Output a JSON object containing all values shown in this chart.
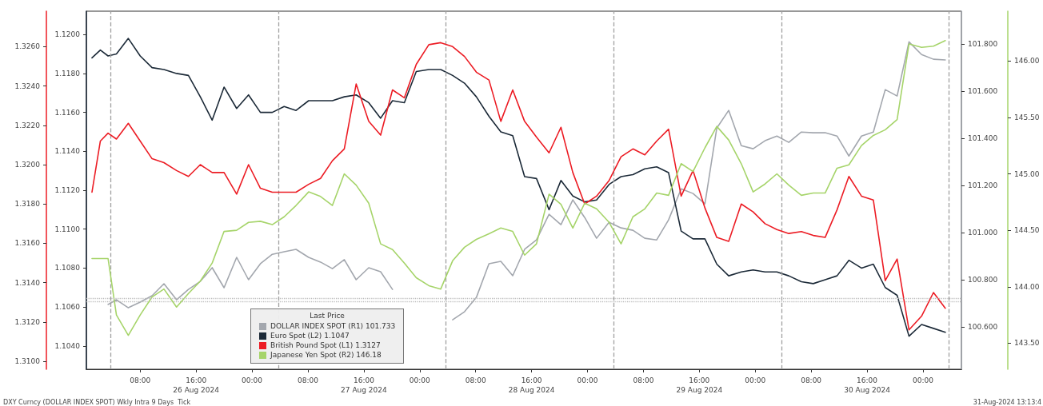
{
  "chart_data": [
    {
      "type": "line",
      "legend_title": "Last Price",
      "annotations": [
        "DXY Curncy (DOLLAR INDEX SPOT) Wkly Intra 9 Days  Tick",
        "31-Aug-2024 13:13:4"
      ],
      "x": [
        "2024-08-26T01:06",
        "2024-08-26T02:18",
        "2024-08-26T03:24",
        "2024-08-26T04:36",
        "2024-08-26T06:18",
        "2024-08-26T08:00",
        "2024-08-26T09:42",
        "2024-08-26T11:24",
        "2024-08-26T13:12",
        "2024-08-26T14:54",
        "2024-08-26T16:36",
        "2024-08-26T18:18",
        "2024-08-26T20:00",
        "2024-08-26T21:48",
        "2024-08-26T23:30",
        "2024-08-27T01:12",
        "2024-08-27T02:54",
        "2024-08-27T04:36",
        "2024-08-27T06:18",
        "2024-08-27T08:06",
        "2024-08-27T09:48",
        "2024-08-27T11:30",
        "2024-08-27T13:12",
        "2024-08-27T14:54",
        "2024-08-27T16:42",
        "2024-08-27T18:24",
        "2024-08-27T20:06",
        "2024-08-27T21:48",
        "2024-08-27T23:30",
        "2024-08-28T01:18",
        "2024-08-28T03:00",
        "2024-08-28T04:42",
        "2024-08-28T06:24",
        "2024-08-28T08:06",
        "2024-08-28T09:54",
        "2024-08-28T11:36",
        "2024-08-28T13:18",
        "2024-08-28T15:00",
        "2024-08-28T16:42",
        "2024-08-28T18:30",
        "2024-08-28T20:12",
        "2024-08-28T21:54",
        "2024-08-28T23:36",
        "2024-08-29T01:18",
        "2024-08-29T03:06",
        "2024-08-29T04:48",
        "2024-08-29T06:30",
        "2024-08-29T08:12",
        "2024-08-29T09:54",
        "2024-08-29T11:36",
        "2024-08-29T13:24",
        "2024-08-29T15:06",
        "2024-08-29T16:48",
        "2024-08-29T18:30",
        "2024-08-29T20:12",
        "2024-08-29T22:00",
        "2024-08-29T23:42",
        "2024-08-30T01:24",
        "2024-08-30T03:06",
        "2024-08-30T04:48",
        "2024-08-30T06:36",
        "2024-08-30T08:18",
        "2024-08-30T10:00",
        "2024-08-30T11:42",
        "2024-08-30T13:24",
        "2024-08-30T15:12",
        "2024-08-30T16:54",
        "2024-08-30T18:36",
        "2024-08-30T20:18",
        "2024-08-30T22:00",
        "2024-08-30T23:48",
        "2024-08-31T01:30",
        "2024-08-31T03:12"
      ],
      "series": [
        {
          "name": "DOLLAR INDEX SPOT (R1) 101.733",
          "color": "#a3a7ae",
          "axis": "y2",
          "values": [
            null,
            null,
            100.695,
            100.715,
            100.681,
            100.705,
            100.732,
            100.783,
            100.715,
            100.759,
            100.793,
            100.851,
            100.766,
            100.895,
            100.8,
            100.868,
            100.908,
            100.919,
            100.929,
            100.895,
            100.875,
            100.847,
            100.885,
            100.8,
            100.851,
            100.834,
            100.759,
            null,
            null,
            null,
            null,
            100.63,
            100.664,
            100.725,
            100.868,
            100.878,
            100.817,
            100.929,
            100.969,
            101.078,
            101.034,
            101.139,
            101.064,
            100.976,
            101.044,
            101.02,
            101.01,
            100.976,
            100.969,
            101.054,
            101.186,
            101.166,
            101.122,
            101.444,
            101.519,
            101.369,
            101.356,
            101.39,
            101.41,
            101.383,
            101.427,
            101.424,
            101.424,
            101.41,
            101.325,
            101.41,
            101.427,
            101.607,
            101.58,
            101.81,
            101.756,
            101.736,
            101.733
          ]
        },
        {
          "name": "Euro Spot (L2) 1.1047",
          "color": "#1c2a38",
          "values": [
            1.1188,
            1.1192,
            1.1189,
            1.119,
            1.1198,
            1.1189,
            1.1183,
            1.1182,
            1.118,
            1.1179,
            1.1168,
            1.1156,
            1.1173,
            1.1162,
            1.1169,
            1.116,
            1.116,
            1.1163,
            1.1161,
            1.1166,
            1.1166,
            1.1166,
            1.1168,
            1.1169,
            1.1165,
            1.1157,
            1.1166,
            1.1165,
            1.1181,
            1.1182,
            1.1182,
            1.1179,
            1.1175,
            1.1168,
            1.1158,
            1.115,
            1.1148,
            1.1127,
            1.1126,
            1.111,
            1.1125,
            1.1117,
            1.1114,
            1.1115,
            1.1123,
            1.1127,
            1.1128,
            1.1131,
            1.1132,
            1.1129,
            1.1099,
            1.1095,
            1.1095,
            1.1082,
            1.1076,
            1.1078,
            1.1079,
            1.1078,
            1.1078,
            1.1076,
            1.1073,
            1.1072,
            1.1074,
            1.1076,
            1.1084,
            1.108,
            1.1082,
            1.107,
            1.1066,
            1.1045,
            1.1051,
            1.1049,
            1.1047
          ]
        }
      ],
      "xlim": [
        "2024-08-26T00:18",
        "2024-08-31T05:30"
      ],
      "xticks": [
        {
          "value": "2024-08-26T08:00",
          "label": "08:00"
        },
        {
          "value": "2024-08-26T16:00",
          "label": "16:00\n26 Aug 2024"
        },
        {
          "value": "2024-08-27T00:00",
          "label": "00:00"
        },
        {
          "value": "2024-08-27T08:00",
          "label": "08:00"
        },
        {
          "value": "2024-08-27T16:00",
          "label": "16:00\n27 Aug 2024"
        },
        {
          "value": "2024-08-28T00:00",
          "label": "00:00"
        },
        {
          "value": "2024-08-28T08:00",
          "label": "08:00"
        },
        {
          "value": "2024-08-28T16:00",
          "label": "16:00\n28 Aug 2024"
        },
        {
          "value": "2024-08-29T00:00",
          "label": "00:00"
        },
        {
          "value": "2024-08-29T08:00",
          "label": "08:00"
        },
        {
          "value": "2024-08-29T16:00",
          "label": "16:00\n29 Aug 2024"
        },
        {
          "value": "2024-08-30T00:00",
          "label": "00:00"
        },
        {
          "value": "2024-08-30T08:00",
          "label": "08:00"
        },
        {
          "value": "2024-08-30T16:00",
          "label": "16:00\n30 Aug 2024"
        },
        {
          "value": "2024-08-31T00:00",
          "label": "00:00"
        }
      ],
      "ylim": [
        1.1028,
        1.1212
      ],
      "yticks": [
        {
          "value": 1.104,
          "label": "1.1040"
        },
        {
          "value": 1.106,
          "label": "1.1060"
        },
        {
          "value": 1.108,
          "label": "1.1080"
        },
        {
          "value": 1.11,
          "label": "1.1100"
        },
        {
          "value": 1.112,
          "label": "1.1120"
        },
        {
          "value": 1.114,
          "label": "1.1140"
        },
        {
          "value": 1.116,
          "label": "1.1160"
        },
        {
          "value": 1.118,
          "label": "1.1180"
        },
        {
          "value": 1.12,
          "label": "1.1200"
        }
      ],
      "y2lim": [
        100.42,
        101.94
      ],
      "y2ticks": [
        {
          "value": 100.6,
          "label": "100.600"
        },
        {
          "value": 100.8,
          "label": "100.800"
        },
        {
          "value": 101,
          "label": "101.000"
        },
        {
          "value": 101.2,
          "label": "101.200"
        },
        {
          "value": 101.4,
          "label": "101.400"
        },
        {
          "value": 101.6,
          "label": "101.600"
        },
        {
          "value": 101.8,
          "label": "101.800"
        }
      ],
      "ref_lines": [
        {
          "axis": "x",
          "value": "2024-08-26T03:45",
          "color": "#a0a0a0",
          "line_style": "dashed"
        },
        {
          "axis": "x",
          "value": "2024-08-27T03:45",
          "color": "#a0a0a0",
          "line_style": "dashed"
        },
        {
          "axis": "x",
          "value": "2024-08-28T03:45",
          "color": "#a0a0a0",
          "line_style": "dashed"
        },
        {
          "axis": "x",
          "value": "2024-08-29T03:45",
          "color": "#a0a0a0",
          "line_style": "dashed"
        },
        {
          "axis": "x",
          "value": "2024-08-30T03:45",
          "color": "#a0a0a0",
          "line_style": "dashed"
        },
        {
          "axis": "x",
          "value": "2024-08-31T03:45",
          "color": "#a0a0a0",
          "line_style": "dashed"
        },
        {
          "axis": "y",
          "value": 1.1063,
          "color": "#bdbdbd",
          "line_style": "dotted"
        }
      ],
      "grid": false,
      "legend": "bottom left",
      "marker": "none",
      "line_style": "solid"
    },
    {
      "type": "line",
      "x": [
        "2024-08-26T01:06",
        "2024-08-26T02:18",
        "2024-08-26T03:24",
        "2024-08-26T04:36",
        "2024-08-26T06:18",
        "2024-08-26T08:00",
        "2024-08-26T09:42",
        "2024-08-26T11:24",
        "2024-08-26T13:12",
        "2024-08-26T14:54",
        "2024-08-26T16:36",
        "2024-08-26T18:18",
        "2024-08-26T20:00",
        "2024-08-26T21:48",
        "2024-08-26T23:30",
        "2024-08-27T01:12",
        "2024-08-27T02:54",
        "2024-08-27T04:36",
        "2024-08-27T06:18",
        "2024-08-27T08:06",
        "2024-08-27T09:48",
        "2024-08-27T11:30",
        "2024-08-27T13:12",
        "2024-08-27T14:54",
        "2024-08-27T16:42",
        "2024-08-27T18:24",
        "2024-08-27T20:06",
        "2024-08-27T21:48",
        "2024-08-27T23:30",
        "2024-08-28T01:18",
        "2024-08-28T03:00",
        "2024-08-28T04:42",
        "2024-08-28T06:24",
        "2024-08-28T08:06",
        "2024-08-28T09:54",
        "2024-08-28T11:36",
        "2024-08-28T13:18",
        "2024-08-28T15:00",
        "2024-08-28T16:42",
        "2024-08-28T18:30",
        "2024-08-28T20:12",
        "2024-08-28T21:54",
        "2024-08-28T23:36",
        "2024-08-29T01:18",
        "2024-08-29T03:06",
        "2024-08-29T04:48",
        "2024-08-29T06:30",
        "2024-08-29T08:12",
        "2024-08-29T09:54",
        "2024-08-29T11:36",
        "2024-08-29T13:24",
        "2024-08-29T15:06",
        "2024-08-29T16:48",
        "2024-08-29T18:30",
        "2024-08-29T20:12",
        "2024-08-29T22:00",
        "2024-08-29T23:42",
        "2024-08-30T01:24",
        "2024-08-30T03:06",
        "2024-08-30T04:48",
        "2024-08-30T06:36",
        "2024-08-30T08:18",
        "2024-08-30T10:00",
        "2024-08-30T11:42",
        "2024-08-30T13:24",
        "2024-08-30T15:12",
        "2024-08-30T16:54",
        "2024-08-30T18:36",
        "2024-08-30T20:18",
        "2024-08-30T22:00",
        "2024-08-30T23:48",
        "2024-08-31T01:30",
        "2024-08-31T03:12"
      ],
      "series": [
        {
          "name": "British Pound Spot (L1) 1.3127",
          "color": "#ec1c24",
          "values": [
            1.3186,
            1.3212,
            1.3216,
            1.3213,
            1.3221,
            1.3212,
            1.3203,
            1.3201,
            1.3197,
            1.3194,
            1.32,
            1.3196,
            1.3196,
            1.3185,
            1.32,
            1.3188,
            1.3186,
            1.3186,
            1.3186,
            1.319,
            1.3193,
            1.3202,
            1.3208,
            1.3241,
            1.3222,
            1.3215,
            1.3238,
            1.3234,
            1.3251,
            1.3261,
            1.3262,
            1.326,
            1.3255,
            1.3247,
            1.3243,
            1.3222,
            1.3238,
            1.3222,
            1.3214,
            1.3206,
            1.3219,
            1.3196,
            1.318,
            1.3184,
            1.3192,
            1.3204,
            1.3208,
            1.3205,
            1.3212,
            1.3218,
            1.3184,
            1.3197,
            1.3178,
            1.3163,
            1.3161,
            1.318,
            1.3176,
            1.317,
            1.3167,
            1.3165,
            1.3166,
            1.3164,
            1.3163,
            1.3177,
            1.3194,
            1.3184,
            1.3182,
            1.3141,
            1.3152,
            1.3116,
            1.3123,
            1.3135,
            1.3127
          ]
        },
        {
          "name": "Japanese Yen Spot (R2) 146.18",
          "color": "#a6d46a",
          "axis": "y2",
          "values": [
            144.25,
            144.25,
            144.25,
            143.75,
            143.57,
            143.75,
            143.91,
            143.98,
            143.82,
            143.94,
            144.05,
            144.21,
            144.49,
            144.5,
            144.57,
            144.58,
            144.55,
            144.62,
            144.72,
            144.84,
            144.8,
            144.72,
            145.0,
            144.9,
            144.74,
            144.38,
            144.33,
            144.21,
            144.08,
            144.01,
            143.98,
            144.23,
            144.35,
            144.42,
            144.47,
            144.52,
            144.49,
            144.28,
            144.38,
            144.82,
            144.73,
            144.52,
            144.74,
            144.69,
            144.57,
            144.38,
            144.62,
            144.69,
            144.83,
            144.81,
            145.09,
            145.02,
            145.23,
            145.42,
            145.3,
            145.09,
            144.84,
            144.91,
            145.0,
            144.9,
            144.81,
            144.83,
            144.83,
            145.05,
            145.08,
            145.25,
            145.34,
            145.39,
            145.48,
            146.15,
            146.12,
            146.13,
            146.18
          ]
        }
      ],
      "xlim": [
        "2024-08-26T00:18",
        "2024-08-31T05:30"
      ],
      "ylim": [
        1.3096,
        1.3278
      ],
      "yticks": [
        {
          "value": 1.31,
          "label": "1.3100"
        },
        {
          "value": 1.312,
          "label": "1.3120"
        },
        {
          "value": 1.314,
          "label": "1.3140"
        },
        {
          "value": 1.316,
          "label": "1.3160"
        },
        {
          "value": 1.318,
          "label": "1.3180"
        },
        {
          "value": 1.32,
          "label": "1.3200"
        },
        {
          "value": 1.322,
          "label": "1.3220"
        },
        {
          "value": 1.324,
          "label": "1.3240"
        },
        {
          "value": 1.326,
          "label": "1.3260"
        }
      ],
      "y2lim": [
        143.27,
        146.44
      ],
      "y2ticks": [
        {
          "value": 143.5,
          "label": "143.50"
        },
        {
          "value": 144,
          "label": "144.00"
        },
        {
          "value": 144.5,
          "label": "144.50"
        },
        {
          "value": 145,
          "label": "145.00"
        },
        {
          "value": 145.5,
          "label": "145.50"
        },
        {
          "value": 146,
          "label": "146.00"
        }
      ],
      "ref_lines": [
        {
          "axis": "y",
          "value": 1.3132,
          "color": "#bdbdbd",
          "line_style": "dotted"
        }
      ],
      "tick_labels": "y",
      "grid": false,
      "legend": "bottom left",
      "marker": "none",
      "line_style": "solid"
    }
  ]
}
